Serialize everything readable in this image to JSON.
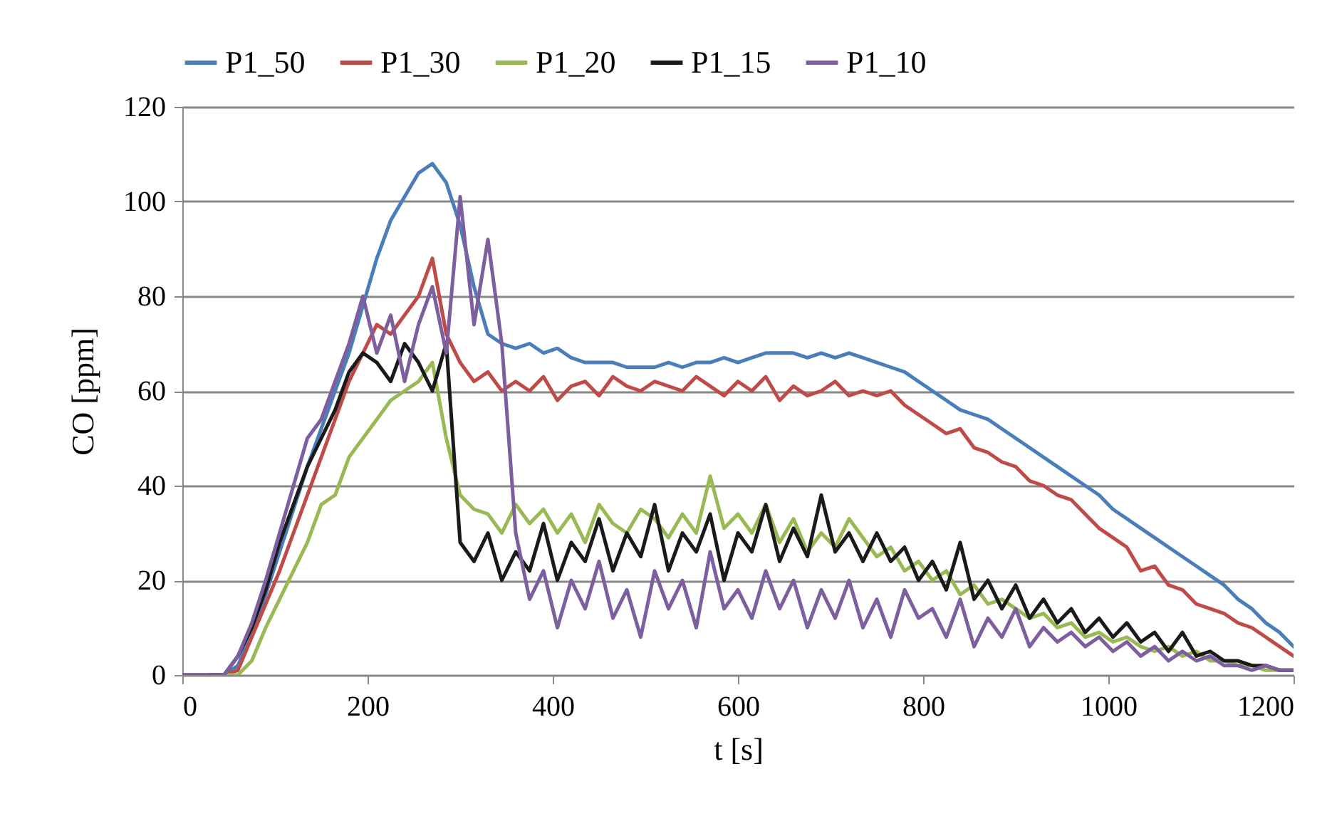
{
  "chart_data": {
    "type": "line",
    "xlabel": "t [s]",
    "ylabel": "CO [ppm]",
    "xlim": [
      0,
      1200
    ],
    "xticks": [
      0,
      200,
      400,
      600,
      800,
      1000,
      1200
    ],
    "ylim": [
      0,
      120
    ],
    "yticks": [
      0,
      20,
      40,
      60,
      80,
      100,
      120
    ],
    "grid": "y",
    "legend": "top",
    "line_style": "solid",
    "x": [
      0,
      15,
      30,
      45,
      60,
      75,
      90,
      105,
      120,
      135,
      150,
      165,
      180,
      195,
      210,
      225,
      240,
      255,
      270,
      285,
      300,
      315,
      330,
      345,
      360,
      375,
      390,
      405,
      420,
      435,
      450,
      465,
      480,
      495,
      510,
      525,
      540,
      555,
      570,
      585,
      600,
      615,
      630,
      645,
      660,
      675,
      690,
      705,
      720,
      735,
      750,
      765,
      780,
      795,
      810,
      825,
      840,
      855,
      870,
      885,
      900,
      915,
      930,
      945,
      960,
      975,
      990,
      1005,
      1020,
      1035,
      1050,
      1065,
      1080,
      1095,
      1110,
      1125,
      1140,
      1155,
      1170,
      1185,
      1200
    ],
    "series": [
      {
        "name": "P1_50",
        "color": "#4a7ebb",
        "values": [
          null,
          null,
          0,
          0,
          2,
          9,
          17,
          26,
          35,
          44,
          52,
          60,
          68,
          78,
          88,
          96,
          101,
          106,
          108,
          104,
          95,
          82,
          72,
          70,
          69,
          70,
          68,
          69,
          67,
          66,
          66,
          66,
          65,
          65,
          65,
          66,
          65,
          66,
          66,
          67,
          66,
          67,
          68,
          68,
          68,
          67,
          68,
          67,
          68,
          67,
          66,
          65,
          64,
          62,
          60,
          58,
          56,
          55,
          54,
          52,
          50,
          48,
          46,
          44,
          42,
          40,
          38,
          35,
          33,
          31,
          29,
          27,
          25,
          23,
          21,
          19,
          16,
          14,
          11,
          9,
          6
        ]
      },
      {
        "name": "P1_30",
        "color": "#be4b48",
        "values": [
          null,
          null,
          0,
          0,
          1,
          8,
          15,
          22,
          30,
          38,
          46,
          54,
          62,
          68,
          74,
          72,
          76,
          80,
          88,
          72,
          66,
          62,
          64,
          60,
          62,
          60,
          63,
          58,
          61,
          62,
          59,
          63,
          61,
          60,
          62,
          61,
          60,
          63,
          61,
          59,
          62,
          60,
          63,
          58,
          61,
          59,
          60,
          62,
          59,
          60,
          59,
          60,
          57,
          55,
          53,
          51,
          52,
          48,
          47,
          45,
          44,
          41,
          40,
          38,
          37,
          34,
          31,
          29,
          27,
          22,
          23,
          19,
          18,
          15,
          14,
          13,
          11,
          10,
          8,
          6,
          4
        ]
      },
      {
        "name": "P1_20",
        "color": "#98b954",
        "values": [
          null,
          null,
          0,
          0,
          0,
          3,
          10,
          16,
          22,
          28,
          36,
          38,
          46,
          50,
          54,
          58,
          60,
          62,
          66,
          50,
          38,
          35,
          34,
          30,
          36,
          32,
          35,
          30,
          34,
          28,
          36,
          32,
          30,
          35,
          33,
          29,
          34,
          30,
          42,
          31,
          34,
          30,
          36,
          28,
          33,
          26,
          30,
          27,
          33,
          29,
          25,
          27,
          22,
          24,
          20,
          22,
          17,
          19,
          15,
          16,
          14,
          12,
          13,
          10,
          11,
          8,
          9,
          7,
          8,
          6,
          5,
          6,
          4,
          5,
          3,
          3,
          2,
          2,
          1,
          1,
          1
        ]
      },
      {
        "name": "P1_15",
        "color": "#1a1a1a",
        "values": [
          0,
          0,
          0,
          0,
          4,
          10,
          18,
          28,
          36,
          44,
          50,
          56,
          64,
          68,
          66,
          62,
          70,
          66,
          60,
          70,
          28,
          24,
          30,
          20,
          26,
          22,
          32,
          20,
          28,
          24,
          33,
          22,
          30,
          25,
          36,
          22,
          30,
          26,
          34,
          20,
          30,
          26,
          36,
          24,
          31,
          25,
          38,
          26,
          30,
          24,
          30,
          24,
          27,
          20,
          24,
          18,
          28,
          16,
          20,
          14,
          19,
          12,
          16,
          11,
          14,
          9,
          12,
          8,
          11,
          7,
          9,
          5,
          9,
          4,
          5,
          3,
          3,
          2,
          2,
          1,
          1
        ]
      },
      {
        "name": "P1_10",
        "color": "#7d5fa0",
        "values": [
          0,
          0,
          0,
          0,
          4,
          11,
          20,
          30,
          40,
          50,
          54,
          62,
          70,
          80,
          68,
          76,
          62,
          74,
          82,
          68,
          101,
          74,
          92,
          70,
          30,
          16,
          22,
          10,
          20,
          14,
          24,
          12,
          18,
          8,
          22,
          14,
          20,
          10,
          26,
          14,
          18,
          12,
          22,
          14,
          20,
          10,
          18,
          12,
          20,
          10,
          16,
          8,
          18,
          12,
          14,
          8,
          16,
          6,
          12,
          8,
          14,
          6,
          10,
          7,
          9,
          6,
          8,
          5,
          7,
          4,
          6,
          3,
          5,
          3,
          4,
          2,
          2,
          1,
          2,
          1,
          1
        ]
      }
    ]
  }
}
